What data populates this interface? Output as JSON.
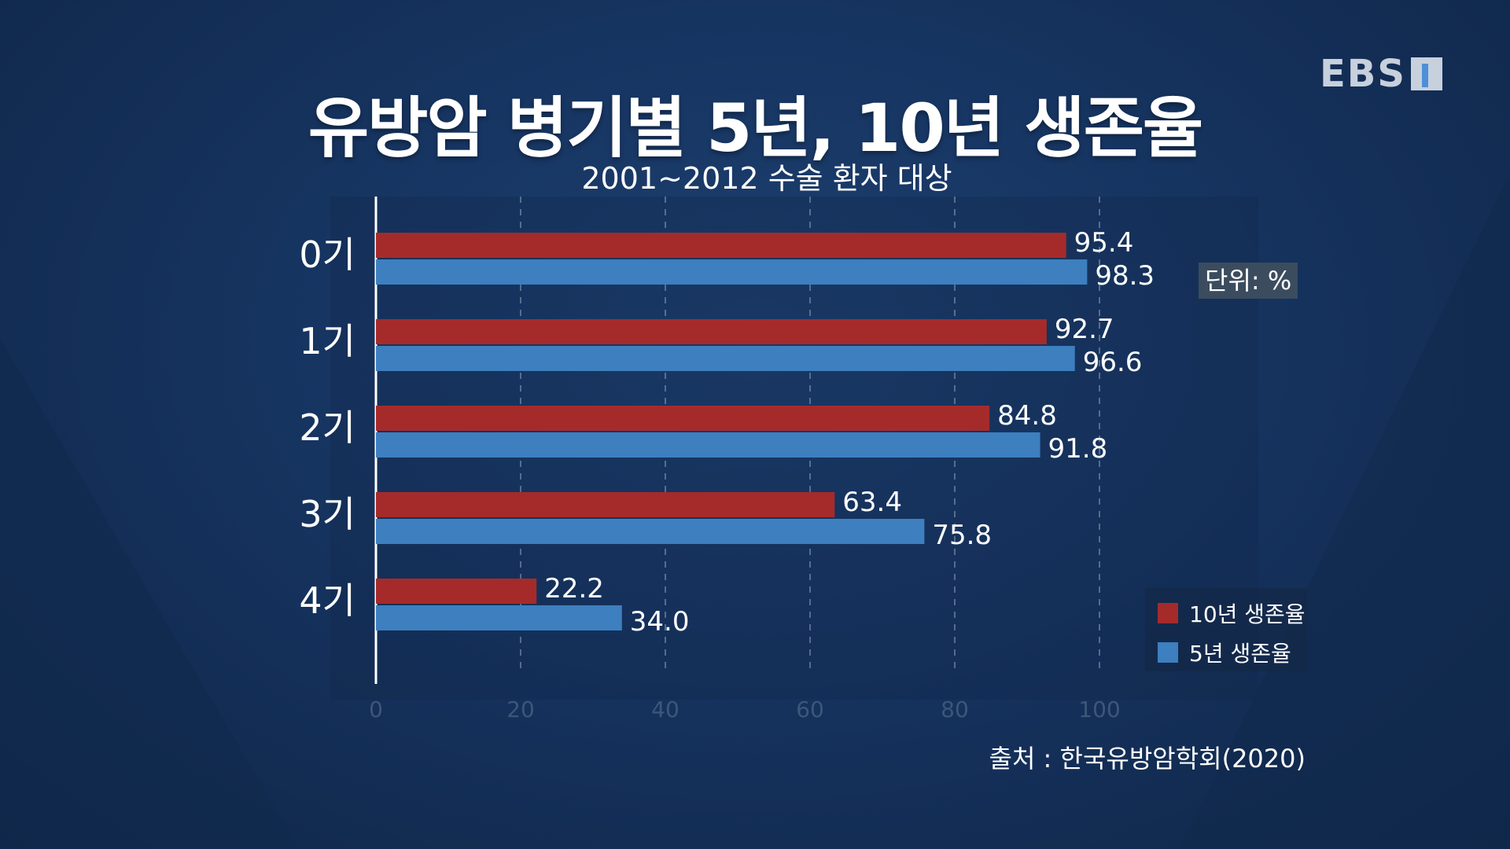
{
  "header": {
    "title": "유방암 병기별 5년, 10년 생존율",
    "subtitle": "2001~2012 수술 환자 대상"
  },
  "logo": {
    "text": "EBS"
  },
  "unit_label": "단위: %",
  "source": "출처 : 한국유방암학회(2020)",
  "colors": {
    "ten_year": "#a52b2b",
    "five_year": "#3d7fbf",
    "axis": "#ffffff",
    "grid": "#8fa3bd",
    "tick": "#3c5778"
  },
  "chart_data": {
    "type": "bar",
    "orientation": "horizontal",
    "categories": [
      "0기",
      "1기",
      "2기",
      "3기",
      "4기"
    ],
    "series": [
      {
        "name": "10년 생존율",
        "values": [
          95.4,
          92.7,
          84.8,
          63.4,
          22.2
        ],
        "labels": [
          "95.4",
          "92.7",
          "84.8",
          "63.4",
          "22.2"
        ]
      },
      {
        "name": "5년 생존율",
        "values": [
          98.3,
          96.6,
          91.8,
          75.8,
          34.0
        ],
        "labels": [
          "98.3",
          "96.6",
          "91.8",
          "75.8",
          "34.0"
        ]
      }
    ],
    "x_ticks": [
      0,
      20,
      40,
      60,
      80,
      100
    ],
    "xlim": [
      0,
      100
    ],
    "grid": true,
    "legend_position": "bottom-right"
  }
}
